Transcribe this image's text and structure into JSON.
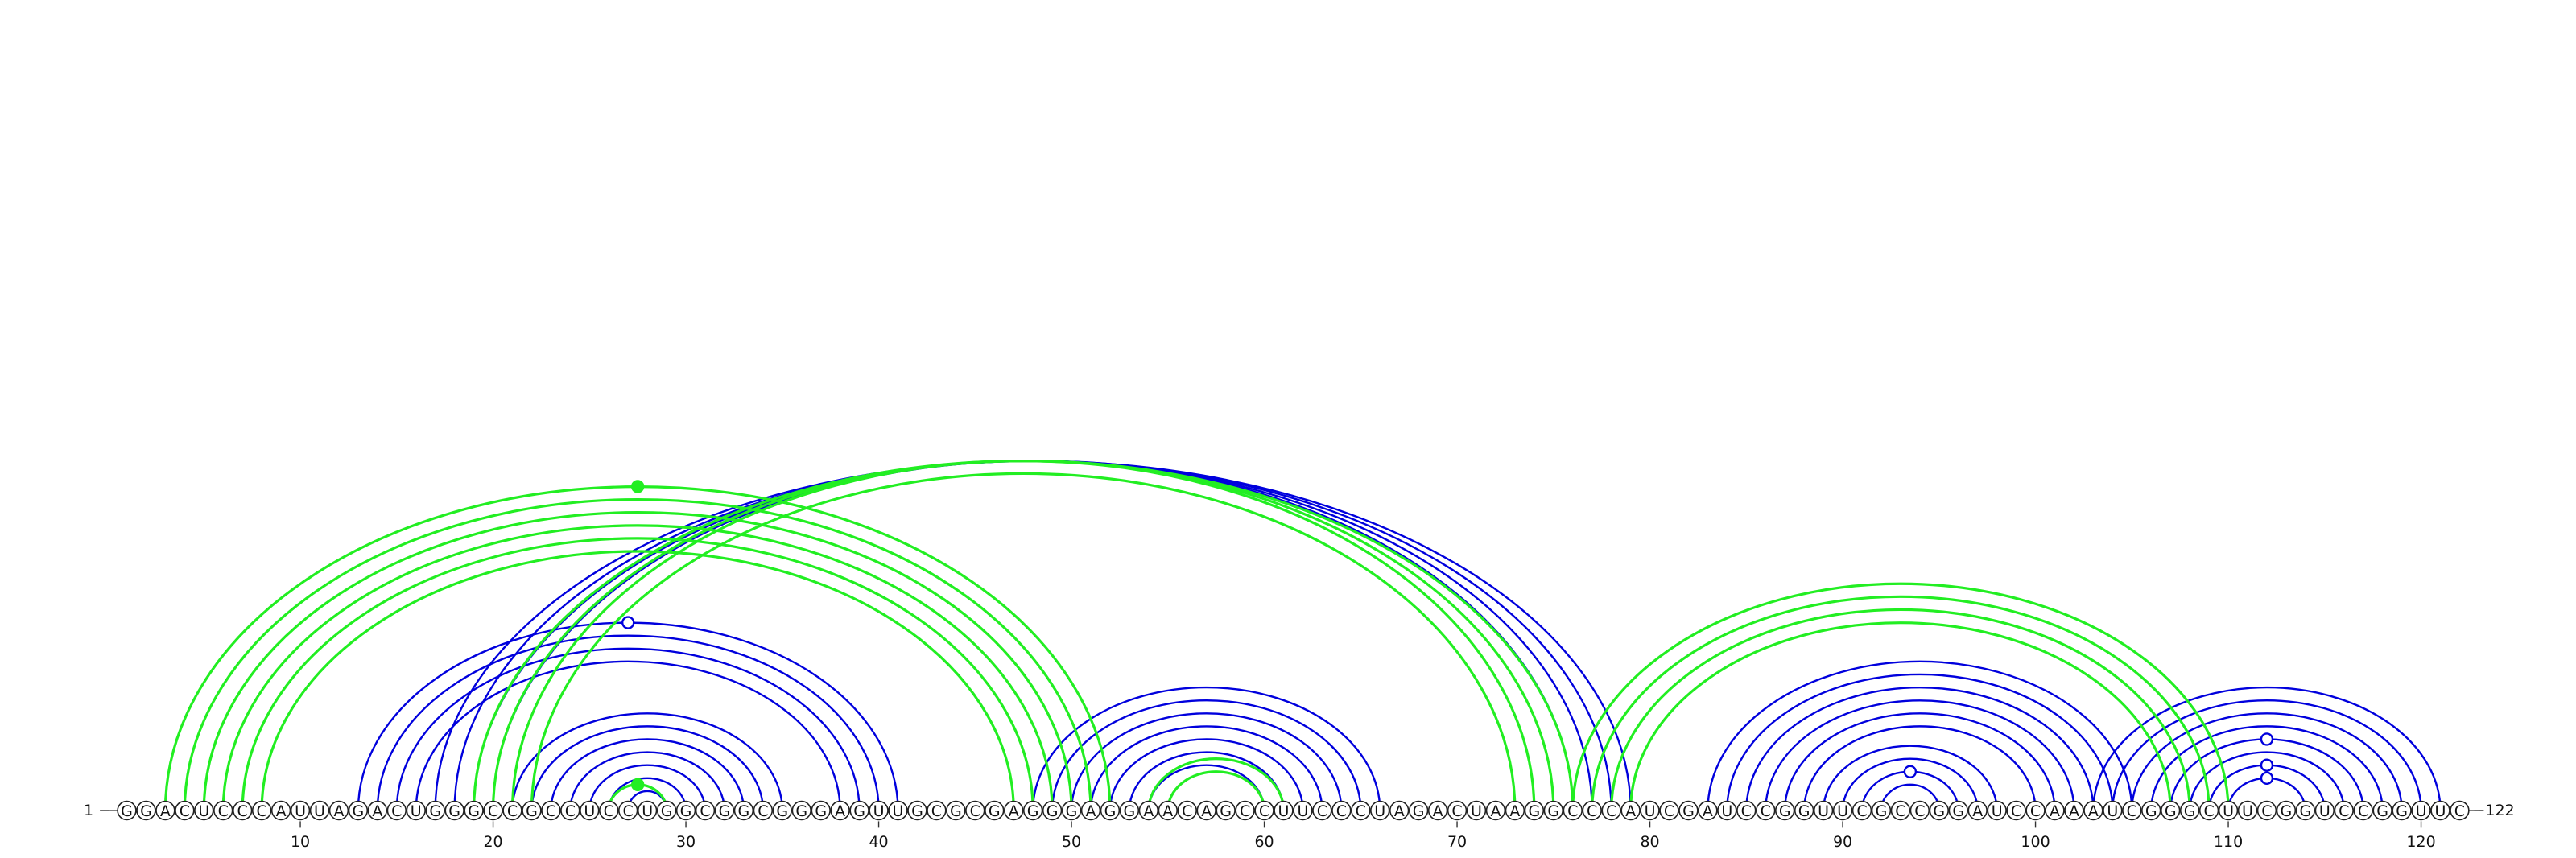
{
  "sequence": "GGACUCCCAUUAGACUGGGCCGCCUCCUGGCGGCGGGAGUUGCGCGAGGGAGGAACAGCCUUCCCUAGACUAAGGCCCAUCGAUCCGGUUCGCCGGAUCCAAAUCGGGCUUCGGUCCGGUUC",
  "start_label": "1 −",
  "end_label": "−122",
  "ticks": [
    10,
    20,
    30,
    40,
    50,
    60,
    70,
    80,
    90,
    100,
    110,
    120
  ],
  "colors": {
    "blue": "#0000dd",
    "green": "#22ee22",
    "axis": "#555555"
  },
  "structures": [
    {
      "color": "blue",
      "pairs": [
        [
          13,
          41
        ],
        [
          14,
          40
        ],
        [
          15,
          39
        ],
        [
          16,
          38
        ],
        [
          17,
          79
        ],
        [
          18,
          78
        ],
        [
          19,
          77
        ],
        [
          20,
          76
        ],
        [
          21,
          35
        ],
        [
          22,
          34
        ],
        [
          23,
          33
        ],
        [
          24,
          32
        ],
        [
          25,
          31
        ],
        [
          26,
          30
        ],
        [
          27,
          29
        ],
        [
          48,
          66
        ],
        [
          49,
          65
        ],
        [
          50,
          64
        ],
        [
          51,
          63
        ],
        [
          52,
          62
        ],
        [
          53,
          61
        ],
        [
          54,
          60
        ],
        [
          83,
          105
        ],
        [
          84,
          104
        ],
        [
          85,
          103
        ],
        [
          86,
          102
        ],
        [
          87,
          101
        ],
        [
          88,
          100
        ],
        [
          89,
          98
        ],
        [
          90,
          97
        ],
        [
          91,
          96
        ],
        [
          92,
          95
        ],
        [
          103,
          121
        ],
        [
          104,
          120
        ],
        [
          105,
          119
        ],
        [
          106,
          118
        ],
        [
          107,
          117
        ],
        [
          108,
          116
        ],
        [
          109,
          115
        ],
        [
          110,
          114
        ]
      ]
    },
    {
      "color": "green",
      "pairs": [
        [
          3,
          52
        ],
        [
          4,
          51
        ],
        [
          5,
          50
        ],
        [
          6,
          49
        ],
        [
          7,
          48
        ],
        [
          8,
          47
        ],
        [
          19,
          76
        ],
        [
          20,
          75
        ],
        [
          21,
          74
        ],
        [
          22,
          73
        ],
        [
          26,
          29
        ],
        [
          54,
          61
        ],
        [
          55,
          60
        ],
        [
          76,
          110
        ],
        [
          77,
          109
        ],
        [
          78,
          108
        ],
        [
          79,
          107
        ]
      ]
    }
  ],
  "markers": [
    {
      "color": "green",
      "pair": [
        26,
        29
      ],
      "fill": true
    },
    {
      "color": "green",
      "pair": [
        3,
        52
      ],
      "fill": true
    },
    {
      "color": "blue",
      "pair": [
        13,
        41
      ],
      "fill": false
    },
    {
      "color": "blue",
      "pair": [
        91,
        96
      ],
      "fill": false
    },
    {
      "color": "blue",
      "pair": [
        110,
        114
      ],
      "fill": false
    },
    {
      "color": "blue",
      "pair": [
        109,
        115
      ],
      "fill": false
    },
    {
      "color": "blue",
      "pair": [
        107,
        117
      ],
      "fill": false
    }
  ]
}
